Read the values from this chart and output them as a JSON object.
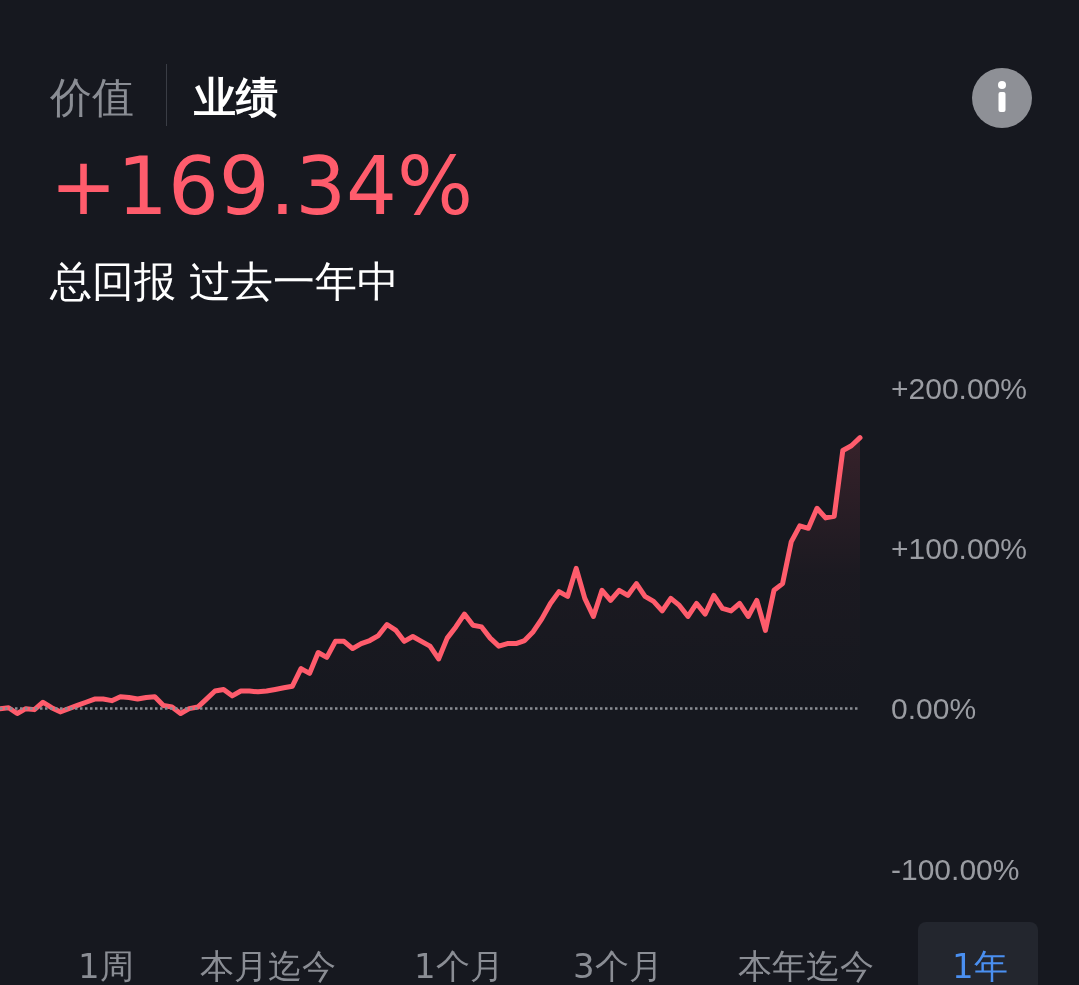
{
  "chart_data": {
    "type": "area",
    "title": "+169.34%",
    "subtitle": "总回报 过去一年中",
    "categories": [
      null,
      null,
      null,
      null,
      null,
      null,
      null,
      null,
      null,
      null,
      null,
      null,
      null,
      null,
      null,
      null,
      null,
      null,
      null,
      null,
      null,
      null,
      null,
      null,
      null,
      null,
      null,
      null,
      null,
      null,
      null,
      null,
      null,
      null,
      null,
      null,
      null,
      null,
      null,
      null,
      null,
      null,
      null,
      null,
      null,
      null,
      null,
      null,
      null,
      null,
      null,
      null,
      null,
      null,
      null,
      null,
      null,
      null,
      null,
      null,
      null,
      null,
      null,
      null,
      null,
      null,
      null,
      null,
      null,
      null,
      null,
      null,
      null,
      null,
      null,
      null,
      null,
      null,
      null,
      null,
      null,
      null,
      null,
      null,
      null,
      null,
      null,
      null,
      null,
      null,
      null,
      null,
      null,
      null,
      null,
      null,
      null,
      null,
      null,
      null,
      null
    ],
    "series": [
      {
        "color": "#ff5c6c",
        "values": [
          0,
          0.6,
          -3,
          0,
          -0.6,
          4,
          0.6,
          -2,
          0,
          2,
          4,
          6,
          6,
          5,
          7.5,
          7,
          6,
          7,
          7.5,
          2,
          1,
          -3,
          0,
          1,
          6,
          11,
          12,
          8,
          11,
          11,
          10.5,
          11,
          12,
          13,
          14,
          25,
          22,
          35,
          32,
          42,
          42,
          37.5,
          40.6,
          42.5,
          45.6,
          52.5,
          49,
          42,
          45,
          42,
          39,
          31,
          44,
          51,
          59,
          52,
          51,
          44,
          39,
          40.6,
          40.6,
          42.5,
          48,
          56,
          65.6,
          73,
          70,
          87.5,
          68.8,
          57.5,
          73.8,
          67.5,
          73.8,
          70.6,
          78,
          70,
          66.9,
          61,
          68.8,
          64.4,
          57.5,
          65.6,
          59,
          70.6,
          62.5,
          61,
          65.6,
          57.5,
          67.5,
          48.8,
          73.8,
          78,
          104,
          114,
          112.5,
          125,
          119,
          120,
          161,
          164,
          169
        ]
      }
    ],
    "ylim": [
      -100,
      200
    ],
    "yticks": [
      {
        "value": -100,
        "label": "-100.00%"
      },
      {
        "value": 0,
        "label": "0.00%"
      },
      {
        "value": 100,
        "label": "+100.00%"
      },
      {
        "value": 200,
        "label": "+200.00%"
      }
    ],
    "ref_lines": [
      {
        "axis": "y",
        "value": 0,
        "color": "#8a8d94",
        "line_style": "dotted"
      }
    ],
    "grid": false,
    "line_style": "solid",
    "annotations": [
      "价值",
      "业绩",
      "1周",
      "本月迄今",
      "1个月",
      "3个月",
      "本年迄今",
      "1年"
    ]
  }
}
